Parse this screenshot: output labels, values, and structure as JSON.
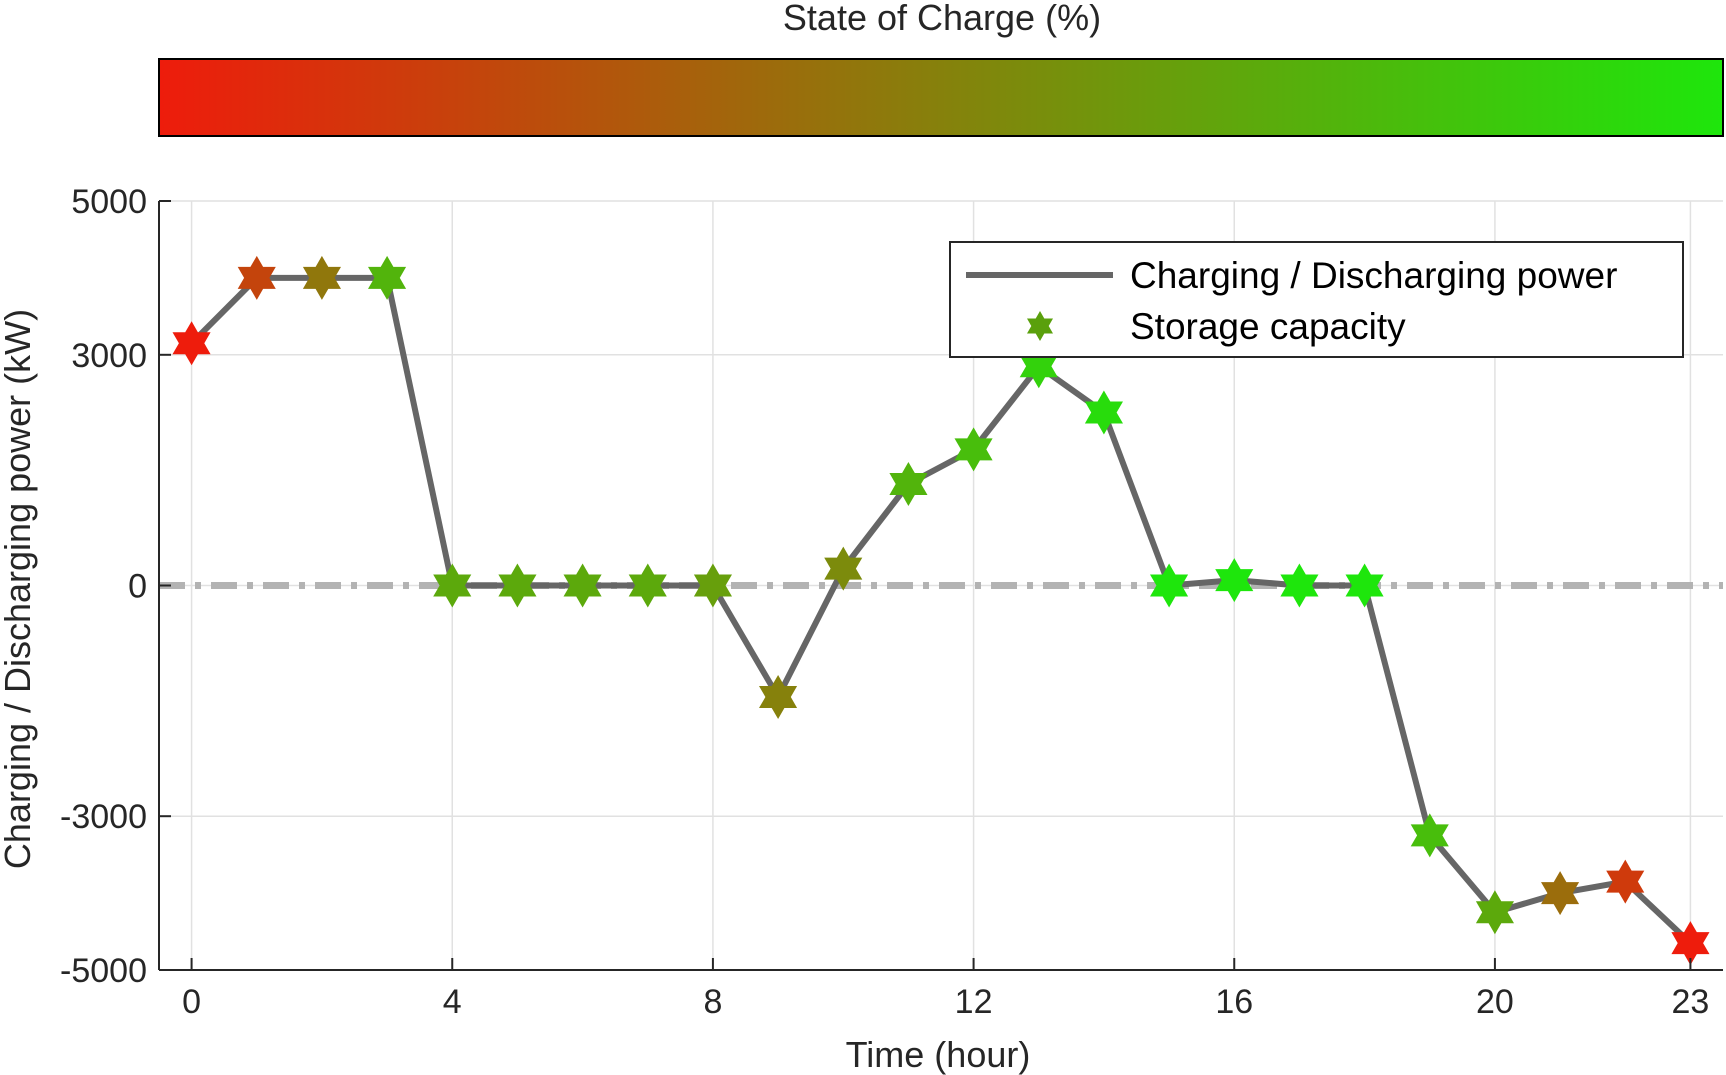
{
  "chart_data": {
    "type": "line",
    "title": "",
    "xlabel": "Time (hour)",
    "ylabel": "Charging / Discharging power (kW)",
    "xlim": [
      -0.5,
      23.5
    ],
    "ylim": [
      -5000,
      5000
    ],
    "xticks": [
      0,
      4,
      8,
      12,
      16,
      20,
      23
    ],
    "yticks": [
      5000,
      3000,
      0,
      -3000,
      -5000
    ],
    "grid": true,
    "zero_line": {
      "y": 0,
      "style": "dash-dot",
      "color": "#b3b3b3"
    },
    "series": [
      {
        "name": "Charging / Discharging power",
        "kind": "line",
        "color": "#666666",
        "x": [
          0,
          1,
          2,
          3,
          4,
          5,
          6,
          7,
          8,
          9,
          10,
          11,
          12,
          13,
          14,
          15,
          16,
          17,
          18,
          19,
          20,
          21,
          22,
          23
        ],
        "values": [
          3150,
          4000,
          4000,
          4000,
          0,
          0,
          0,
          0,
          0,
          -1450,
          220,
          1320,
          1770,
          2850,
          2250,
          0,
          70,
          0,
          0,
          -3250,
          -4250,
          -4000,
          -3850,
          -4650
        ]
      },
      {
        "name": "Storage capacity",
        "kind": "marker",
        "marker": "hexagram",
        "x": [
          0,
          1,
          2,
          3,
          4,
          5,
          6,
          7,
          8,
          9,
          10,
          11,
          12,
          13,
          14,
          15,
          16,
          17,
          18,
          19,
          20,
          21,
          22,
          23
        ],
        "values": [
          3150,
          4000,
          4000,
          4000,
          0,
          0,
          0,
          0,
          0,
          -1450,
          220,
          1320,
          1770,
          2850,
          2250,
          0,
          70,
          0,
          0,
          -3250,
          -4250,
          -4000,
          -3850,
          -4650
        ],
        "soc_percent": [
          0,
          20,
          45,
          75,
          70,
          70,
          70,
          70,
          65,
          50,
          55,
          75,
          80,
          90,
          95,
          100,
          100,
          100,
          100,
          80,
          70,
          40,
          15,
          0
        ]
      }
    ],
    "legend": {
      "position": "top-right",
      "entries": [
        "Charging / Discharging power",
        "Storage capacity"
      ]
    },
    "colorbar": {
      "label": "State of Charge (%)",
      "position": "top",
      "colormap": [
        "#ee1c0c",
        "#1ee60c"
      ],
      "range": [
        0,
        100
      ]
    }
  }
}
